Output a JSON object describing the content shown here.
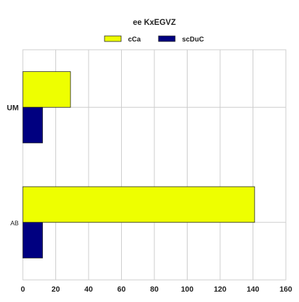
{
  "chart_data": {
    "type": "bar",
    "orientation": "horizontal",
    "title": "ee KxEGVZ",
    "xlabel": "",
    "ylabel": "",
    "categories": [
      "UM",
      "AB"
    ],
    "series": [
      {
        "name": "cCa",
        "values": [
          29,
          141
        ],
        "color": "#eeff00"
      },
      {
        "name": "scDuC",
        "values": [
          12,
          12
        ],
        "color": "#000080"
      }
    ],
    "xlim": [
      0,
      160
    ],
    "x_ticks": [
      0,
      20,
      40,
      60,
      80,
      100,
      120,
      140,
      160
    ],
    "grid": true,
    "legend_position": "top-center"
  }
}
